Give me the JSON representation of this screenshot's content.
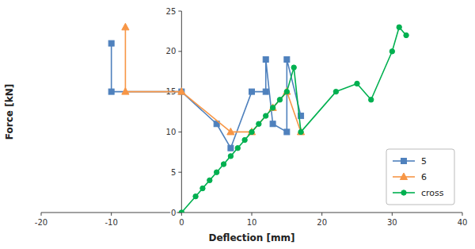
{
  "chart_data": {
    "type": "line",
    "xlabel": "Deflection [mm]",
    "ylabel": "Force [kN]",
    "series": [
      {
        "name": "5",
        "color": "#4f81bd",
        "marker": "square",
        "x": [
          -10,
          -10,
          0,
          5,
          7,
          10,
          12,
          12,
          13,
          15,
          15,
          17
        ],
        "values": [
          21,
          15,
          15,
          11,
          8,
          15,
          15,
          19,
          11,
          10,
          19,
          12
        ]
      },
      {
        "name": "6",
        "color": "#f79646",
        "marker": "triangle",
        "x": [
          -8,
          -8,
          0,
          7,
          10,
          13,
          15,
          17
        ],
        "values": [
          23,
          15,
          15,
          10,
          10,
          13,
          15,
          10
        ]
      },
      {
        "name": "cross",
        "color": "#00b050",
        "marker": "circle",
        "x": [
          0,
          2,
          3,
          4,
          5,
          6,
          7,
          8,
          9,
          10,
          11,
          12,
          13,
          14,
          15,
          16,
          17,
          22,
          25,
          27,
          30,
          31,
          32
        ],
        "values": [
          0,
          2,
          3,
          4,
          5,
          6,
          7,
          8,
          9,
          10,
          11,
          12,
          13,
          14,
          15,
          18,
          10,
          15,
          16,
          14,
          20,
          23,
          22
        ]
      }
    ],
    "xlim": [
      -20,
      40
    ],
    "ylim": [
      0,
      25
    ],
    "xticks": [
      -20,
      -10,
      0,
      10,
      20,
      30,
      40
    ],
    "yticks": [
      0,
      5,
      10,
      15,
      20,
      25
    ],
    "grid": false,
    "legend": "lower right"
  }
}
